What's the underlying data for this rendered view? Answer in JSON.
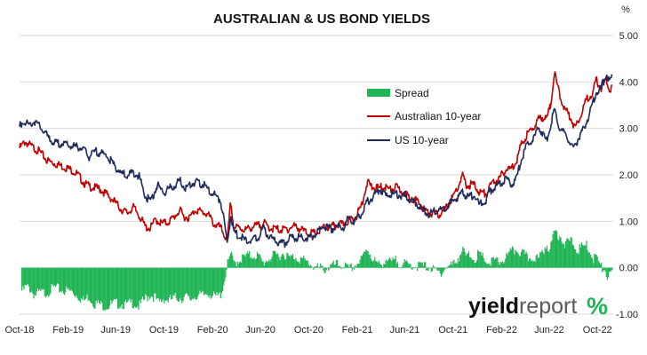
{
  "chart_data": {
    "type": "line",
    "title": "AUSTRALIAN & US BOND YIELDS",
    "yunit": "%",
    "ylim": [
      -1.0,
      5.0
    ],
    "yticks": [
      "5.00",
      "4.00",
      "3.00",
      "2.00",
      "1.00",
      "0.00",
      "-1.00"
    ],
    "xlim": [
      "2018-10-01",
      "2022-11-10"
    ],
    "xticks": [
      {
        "date": "2018-10-01",
        "label": "Oct-18"
      },
      {
        "date": "2019-02-01",
        "label": "Feb-19"
      },
      {
        "date": "2019-06-01",
        "label": "Jun-19"
      },
      {
        "date": "2019-10-01",
        "label": "Oct-19"
      },
      {
        "date": "2020-02-01",
        "label": "Feb-20"
      },
      {
        "date": "2020-06-01",
        "label": "Jun-20"
      },
      {
        "date": "2020-10-01",
        "label": "Oct-20"
      },
      {
        "date": "2021-02-01",
        "label": "Feb-21"
      },
      {
        "date": "2021-06-01",
        "label": "Jun-21"
      },
      {
        "date": "2021-10-01",
        "label": "Oct-21"
      },
      {
        "date": "2022-02-01",
        "label": "Feb-22"
      },
      {
        "date": "2022-06-01",
        "label": "Jun-22"
      },
      {
        "date": "2022-10-01",
        "label": "Oct-22"
      }
    ],
    "grid": true,
    "legend": "upper-middle",
    "series": [
      {
        "name": "Australian 10-year",
        "color": "#c00000",
        "points": [
          [
            "2018-10-01",
            2.62
          ],
          [
            "2018-10-15",
            2.76
          ],
          [
            "2018-11-01",
            2.65
          ],
          [
            "2018-11-20",
            2.55
          ],
          [
            "2018-12-10",
            2.35
          ],
          [
            "2019-01-01",
            2.28
          ],
          [
            "2019-01-20",
            2.22
          ],
          [
            "2019-02-10",
            2.15
          ],
          [
            "2019-02-25",
            2.05
          ],
          [
            "2019-03-15",
            1.85
          ],
          [
            "2019-04-01",
            1.78
          ],
          [
            "2019-04-20",
            1.75
          ],
          [
            "2019-05-10",
            1.62
          ],
          [
            "2019-05-28",
            1.48
          ],
          [
            "2019-06-15",
            1.3
          ],
          [
            "2019-07-01",
            1.22
          ],
          [
            "2019-07-15",
            1.35
          ],
          [
            "2019-07-30",
            1.18
          ],
          [
            "2019-08-15",
            0.92
          ],
          [
            "2019-08-28",
            0.9
          ],
          [
            "2019-09-10",
            1.08
          ],
          [
            "2019-09-25",
            1.0
          ],
          [
            "2019-10-10",
            1.02
          ],
          [
            "2019-10-25",
            1.12
          ],
          [
            "2019-11-10",
            1.28
          ],
          [
            "2019-11-20",
            1.15
          ],
          [
            "2019-12-05",
            1.12
          ],
          [
            "2019-12-20",
            1.3
          ],
          [
            "2020-01-05",
            1.24
          ],
          [
            "2020-01-20",
            1.2
          ],
          [
            "2020-02-05",
            0.98
          ],
          [
            "2020-02-20",
            0.92
          ],
          [
            "2020-03-05",
            0.7
          ],
          [
            "2020-03-09",
            0.58
          ],
          [
            "2020-03-18",
            1.48
          ],
          [
            "2020-03-25",
            0.92
          ],
          [
            "2020-04-10",
            0.9
          ],
          [
            "2020-04-25",
            0.86
          ],
          [
            "2020-05-10",
            0.92
          ],
          [
            "2020-05-25",
            0.95
          ],
          [
            "2020-06-10",
            1.0
          ],
          [
            "2020-06-25",
            0.9
          ],
          [
            "2020-07-10",
            0.88
          ],
          [
            "2020-07-25",
            0.86
          ],
          [
            "2020-08-10",
            0.88
          ],
          [
            "2020-08-25",
            0.95
          ],
          [
            "2020-09-10",
            0.88
          ],
          [
            "2020-09-25",
            0.8
          ],
          [
            "2020-10-10",
            0.78
          ],
          [
            "2020-10-25",
            0.8
          ],
          [
            "2020-11-10",
            0.92
          ],
          [
            "2020-11-25",
            0.9
          ],
          [
            "2020-12-10",
            0.98
          ],
          [
            "2020-12-25",
            0.97
          ],
          [
            "2021-01-10",
            1.07
          ],
          [
            "2021-01-25",
            1.1
          ],
          [
            "2021-02-10",
            1.35
          ],
          [
            "2021-02-26",
            1.88
          ],
          [
            "2021-03-10",
            1.78
          ],
          [
            "2021-03-25",
            1.75
          ],
          [
            "2021-04-10",
            1.8
          ],
          [
            "2021-04-25",
            1.72
          ],
          [
            "2021-05-10",
            1.78
          ],
          [
            "2021-05-25",
            1.68
          ],
          [
            "2021-06-10",
            1.58
          ],
          [
            "2021-06-25",
            1.52
          ],
          [
            "2021-07-10",
            1.4
          ],
          [
            "2021-07-25",
            1.25
          ],
          [
            "2021-08-10",
            1.22
          ],
          [
            "2021-08-25",
            1.18
          ],
          [
            "2021-09-10",
            1.28
          ],
          [
            "2021-09-25",
            1.48
          ],
          [
            "2021-10-10",
            1.72
          ],
          [
            "2021-10-25",
            2.02
          ],
          [
            "2021-11-05",
            1.8
          ],
          [
            "2021-11-20",
            1.85
          ],
          [
            "2021-12-10",
            1.65
          ],
          [
            "2021-12-25",
            1.65
          ],
          [
            "2022-01-10",
            1.9
          ],
          [
            "2022-01-25",
            1.95
          ],
          [
            "2022-02-10",
            2.15
          ],
          [
            "2022-02-25",
            2.18
          ],
          [
            "2022-03-10",
            2.35
          ],
          [
            "2022-03-25",
            2.75
          ],
          [
            "2022-04-10",
            2.95
          ],
          [
            "2022-04-25",
            3.1
          ],
          [
            "2022-05-10",
            3.3
          ],
          [
            "2022-05-25",
            3.25
          ],
          [
            "2022-06-05",
            3.55
          ],
          [
            "2022-06-14",
            4.25
          ],
          [
            "2022-06-25",
            3.85
          ],
          [
            "2022-07-10",
            3.45
          ],
          [
            "2022-07-25",
            3.3
          ],
          [
            "2022-08-05",
            3.05
          ],
          [
            "2022-08-20",
            3.35
          ],
          [
            "2022-09-05",
            3.7
          ],
          [
            "2022-09-20",
            3.8
          ],
          [
            "2022-09-28",
            4.1
          ],
          [
            "2022-10-10",
            3.9
          ],
          [
            "2022-10-22",
            4.12
          ],
          [
            "2022-11-01",
            3.85
          ],
          [
            "2022-11-08",
            4.0
          ]
        ]
      },
      {
        "name": "US 10-year",
        "color": "#1f2a5c",
        "points": [
          [
            "2018-10-01",
            3.08
          ],
          [
            "2018-10-10",
            3.22
          ],
          [
            "2018-10-25",
            3.12
          ],
          [
            "2018-11-08",
            3.2
          ],
          [
            "2018-11-25",
            3.05
          ],
          [
            "2018-12-10",
            2.88
          ],
          [
            "2018-12-28",
            2.72
          ],
          [
            "2019-01-15",
            2.72
          ],
          [
            "2019-02-01",
            2.68
          ],
          [
            "2019-02-20",
            2.65
          ],
          [
            "2019-03-10",
            2.62
          ],
          [
            "2019-03-25",
            2.42
          ],
          [
            "2019-04-10",
            2.55
          ],
          [
            "2019-04-25",
            2.52
          ],
          [
            "2019-05-10",
            2.45
          ],
          [
            "2019-05-28",
            2.25
          ],
          [
            "2019-06-15",
            2.08
          ],
          [
            "2019-07-01",
            2.02
          ],
          [
            "2019-07-15",
            2.1
          ],
          [
            "2019-07-30",
            2.02
          ],
          [
            "2019-08-15",
            1.58
          ],
          [
            "2019-08-28",
            1.48
          ],
          [
            "2019-09-15",
            1.82
          ],
          [
            "2019-09-30",
            1.66
          ],
          [
            "2019-10-15",
            1.75
          ],
          [
            "2019-10-30",
            1.82
          ],
          [
            "2019-11-10",
            1.92
          ],
          [
            "2019-11-25",
            1.76
          ],
          [
            "2019-12-10",
            1.85
          ],
          [
            "2019-12-25",
            1.9
          ],
          [
            "2020-01-10",
            1.82
          ],
          [
            "2020-01-25",
            1.68
          ],
          [
            "2020-02-05",
            1.62
          ],
          [
            "2020-02-20",
            1.52
          ],
          [
            "2020-03-01",
            1.1
          ],
          [
            "2020-03-09",
            0.55
          ],
          [
            "2020-03-18",
            1.18
          ],
          [
            "2020-03-25",
            0.82
          ],
          [
            "2020-04-10",
            0.72
          ],
          [
            "2020-04-25",
            0.62
          ],
          [
            "2020-05-10",
            0.65
          ],
          [
            "2020-05-25",
            0.68
          ],
          [
            "2020-06-08",
            0.9
          ],
          [
            "2020-06-25",
            0.68
          ],
          [
            "2020-07-10",
            0.62
          ],
          [
            "2020-07-30",
            0.55
          ],
          [
            "2020-08-15",
            0.7
          ],
          [
            "2020-08-30",
            0.7
          ],
          [
            "2020-09-15",
            0.68
          ],
          [
            "2020-09-30",
            0.68
          ],
          [
            "2020-10-15",
            0.75
          ],
          [
            "2020-10-30",
            0.85
          ],
          [
            "2020-11-10",
            0.95
          ],
          [
            "2020-11-25",
            0.88
          ],
          [
            "2020-12-10",
            0.92
          ],
          [
            "2020-12-28",
            0.92
          ],
          [
            "2021-01-10",
            1.12
          ],
          [
            "2021-01-25",
            1.05
          ],
          [
            "2021-02-10",
            1.2
          ],
          [
            "2021-02-25",
            1.45
          ],
          [
            "2021-03-10",
            1.55
          ],
          [
            "2021-03-31",
            1.74
          ],
          [
            "2021-04-15",
            1.58
          ],
          [
            "2021-04-30",
            1.63
          ],
          [
            "2021-05-15",
            1.62
          ],
          [
            "2021-05-30",
            1.58
          ],
          [
            "2021-06-15",
            1.5
          ],
          [
            "2021-06-30",
            1.45
          ],
          [
            "2021-07-15",
            1.3
          ],
          [
            "2021-08-01",
            1.2
          ],
          [
            "2021-08-15",
            1.28
          ],
          [
            "2021-08-30",
            1.3
          ],
          [
            "2021-09-15",
            1.32
          ],
          [
            "2021-09-30",
            1.5
          ],
          [
            "2021-10-15",
            1.58
          ],
          [
            "2021-10-25",
            1.65
          ],
          [
            "2021-11-10",
            1.55
          ],
          [
            "2021-11-25",
            1.62
          ],
          [
            "2021-12-05",
            1.4
          ],
          [
            "2021-12-20",
            1.45
          ],
          [
            "2022-01-05",
            1.72
          ],
          [
            "2022-01-20",
            1.8
          ],
          [
            "2022-02-10",
            1.95
          ],
          [
            "2022-02-25",
            1.85
          ],
          [
            "2022-03-10",
            1.95
          ],
          [
            "2022-03-25",
            2.45
          ],
          [
            "2022-04-10",
            2.75
          ],
          [
            "2022-04-25",
            2.85
          ],
          [
            "2022-05-06",
            3.1
          ],
          [
            "2022-05-25",
            2.75
          ],
          [
            "2022-06-14",
            3.45
          ],
          [
            "2022-06-28",
            3.05
          ],
          [
            "2022-07-15",
            2.9
          ],
          [
            "2022-08-01",
            2.58
          ],
          [
            "2022-08-15",
            2.85
          ],
          [
            "2022-08-30",
            3.1
          ],
          [
            "2022-09-15",
            3.45
          ],
          [
            "2022-09-28",
            3.85
          ],
          [
            "2022-10-10",
            3.9
          ],
          [
            "2022-10-24",
            4.23
          ],
          [
            "2022-11-01",
            4.05
          ],
          [
            "2022-11-08",
            4.15
          ]
        ]
      }
    ],
    "spread": {
      "name": "Spread",
      "color": "#1fb454",
      "type": "bar",
      "note_source": "computed from series"
    }
  },
  "branding": {
    "word_yield": "yield",
    "word_report": "report",
    "symbol": "%"
  }
}
